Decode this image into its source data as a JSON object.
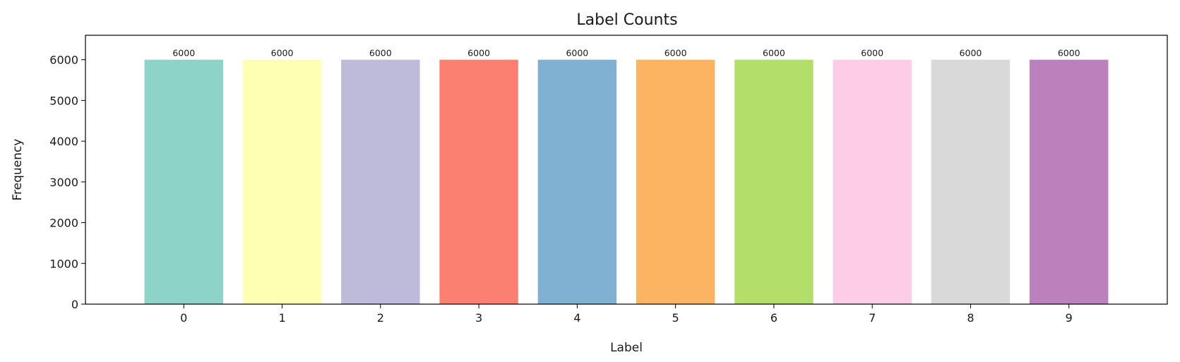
{
  "chart_data": {
    "type": "bar",
    "title": "Label Counts",
    "xlabel": "Label",
    "ylabel": "Frequency",
    "categories": [
      "0",
      "1",
      "2",
      "3",
      "4",
      "5",
      "6",
      "7",
      "8",
      "9"
    ],
    "values": [
      6000,
      6000,
      6000,
      6000,
      6000,
      6000,
      6000,
      6000,
      6000,
      6000
    ],
    "colors": [
      "#8dd3c7",
      "#ffffb3",
      "#bebada",
      "#fb8072",
      "#80b1d3",
      "#fdb462",
      "#b3de69",
      "#fccde5",
      "#d9d9d9",
      "#bc80bd"
    ],
    "ylim": [
      0,
      6600
    ],
    "yticks": [
      0,
      1000,
      2000,
      3000,
      4000,
      5000,
      6000
    ],
    "grid": false,
    "legend": "none",
    "data_labels": true
  }
}
